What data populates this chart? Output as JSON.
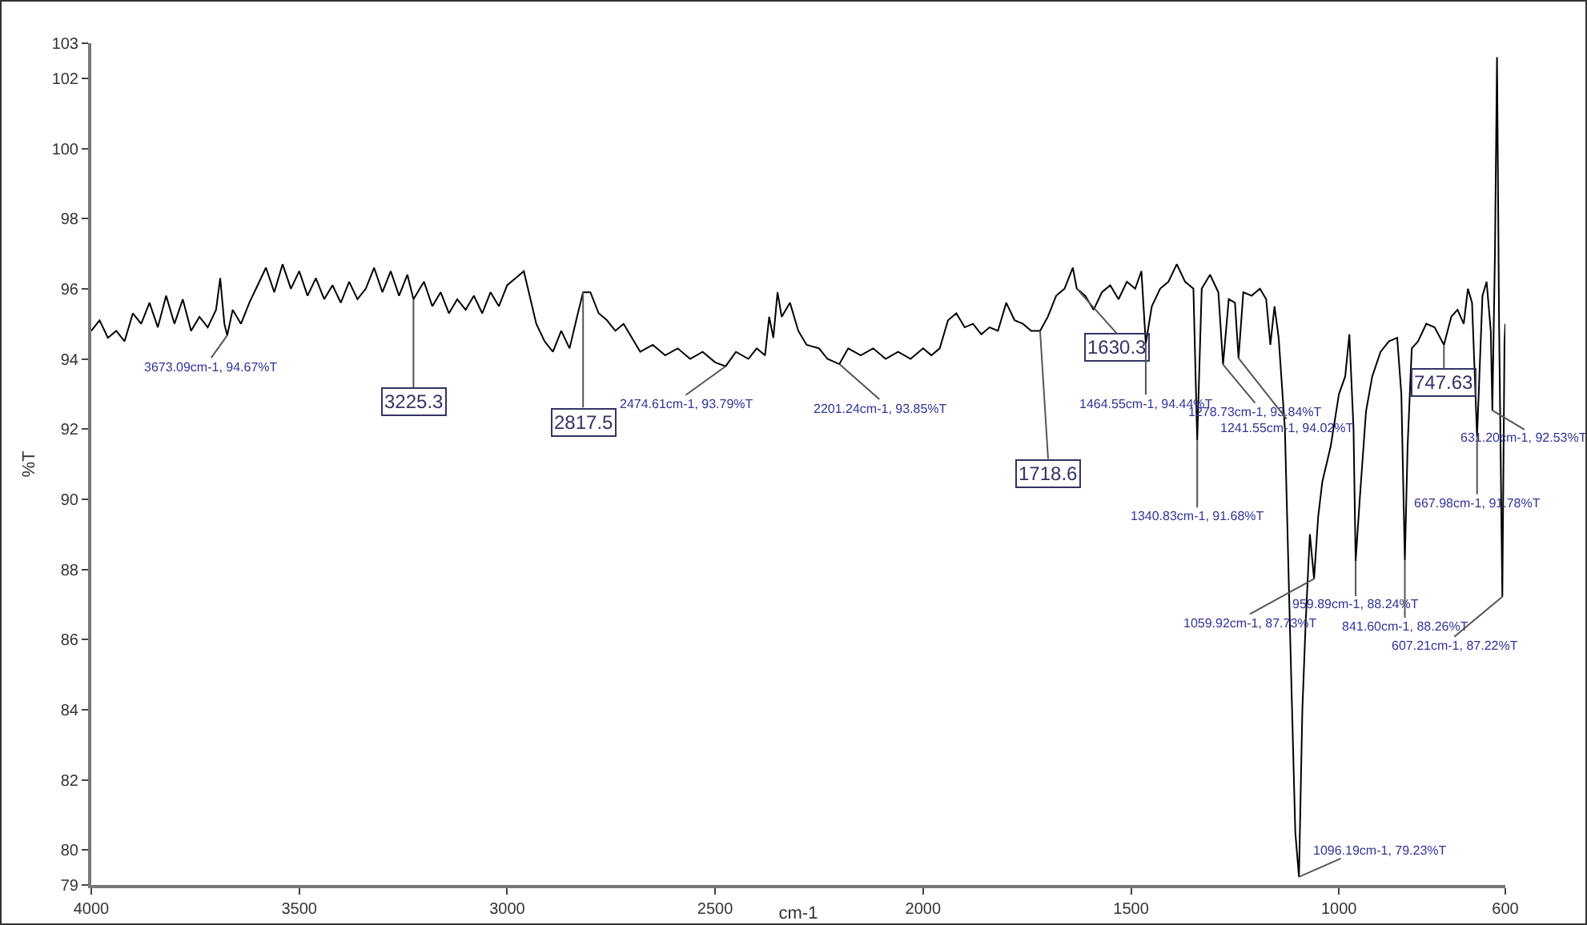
{
  "chart_data": {
    "type": "line",
    "xlabel": "cm-1",
    "ylabel": "%T",
    "color": "#000000",
    "grid": false,
    "marker": "none",
    "line_style": "solid",
    "xlim": [
      4000,
      600
    ],
    "xticks": [
      4000,
      3500,
      3000,
      2500,
      2000,
      1500,
      1000,
      600
    ],
    "ylim": [
      79,
      103
    ],
    "yticks": [
      79,
      80,
      82,
      84,
      86,
      88,
      90,
      92,
      94,
      96,
      98,
      100,
      102,
      103
    ],
    "x": [
      4000,
      3980,
      3960,
      3940,
      3920,
      3900,
      3880,
      3860,
      3840,
      3820,
      3800,
      3780,
      3760,
      3740,
      3720,
      3700,
      3690,
      3680,
      3673.09,
      3660,
      3640,
      3620,
      3600,
      3580,
      3560,
      3540,
      3520,
      3500,
      3480,
      3460,
      3440,
      3420,
      3400,
      3380,
      3360,
      3340,
      3320,
      3300,
      3280,
      3260,
      3240,
      3225.3,
      3200,
      3180,
      3160,
      3140,
      3120,
      3100,
      3080,
      3060,
      3040,
      3020,
      3000,
      2980,
      2960,
      2950,
      2930,
      2910,
      2890,
      2870,
      2850,
      2830,
      2817.5,
      2800,
      2780,
      2760,
      2740,
      2720,
      2700,
      2680,
      2650,
      2620,
      2590,
      2560,
      2530,
      2500,
      2474.61,
      2450,
      2420,
      2400,
      2380,
      2370,
      2360,
      2350,
      2340,
      2320,
      2300,
      2280,
      2250,
      2230,
      2201.24,
      2180,
      2150,
      2120,
      2090,
      2060,
      2030,
      2000,
      1980,
      1960,
      1940,
      1920,
      1900,
      1880,
      1860,
      1840,
      1820,
      1800,
      1780,
      1760,
      1740,
      1718.6,
      1700,
      1680,
      1660,
      1640,
      1630.3,
      1610,
      1590,
      1570,
      1550,
      1530,
      1510,
      1490,
      1475,
      1464.55,
      1450,
      1430,
      1410,
      1390,
      1370,
      1350,
      1340.83,
      1330,
      1310,
      1290,
      1278.73,
      1265,
      1250,
      1241.55,
      1230,
      1210,
      1190,
      1175,
      1165,
      1155,
      1145,
      1130,
      1115,
      1105,
      1096.19,
      1088,
      1080,
      1070,
      1059.92,
      1050,
      1040,
      1020,
      1000,
      985,
      975,
      965,
      959.89,
      950,
      935,
      920,
      900,
      880,
      860,
      850,
      841.6,
      835,
      825,
      810,
      790,
      770,
      747.63,
      730,
      715,
      700,
      690,
      680,
      667.98,
      655,
      645,
      635,
      631.2,
      625,
      620,
      615,
      607.21,
      602,
      600
    ],
    "values": [
      94.8,
      95.1,
      94.6,
      94.8,
      94.5,
      95.3,
      95.0,
      95.6,
      94.9,
      95.8,
      95.0,
      95.7,
      94.8,
      95.2,
      94.9,
      95.4,
      96.3,
      95.0,
      94.67,
      95.4,
      95.0,
      95.6,
      96.1,
      96.6,
      95.9,
      96.7,
      96.0,
      96.5,
      95.8,
      96.3,
      95.7,
      96.1,
      95.6,
      96.2,
      95.7,
      96.0,
      96.6,
      95.9,
      96.5,
      95.8,
      96.4,
      95.7,
      96.2,
      95.5,
      95.9,
      95.3,
      95.7,
      95.4,
      95.8,
      95.3,
      95.9,
      95.5,
      96.1,
      96.3,
      96.5,
      96.0,
      95.0,
      94.5,
      94.2,
      94.8,
      94.3,
      95.3,
      95.9,
      95.9,
      95.3,
      95.1,
      94.8,
      95.0,
      94.6,
      94.2,
      94.4,
      94.1,
      94.3,
      94.0,
      94.2,
      93.9,
      93.79,
      94.2,
      94.0,
      94.3,
      94.1,
      95.2,
      94.6,
      95.9,
      95.2,
      95.6,
      94.8,
      94.4,
      94.3,
      94.0,
      93.85,
      94.3,
      94.1,
      94.3,
      94.0,
      94.2,
      94.0,
      94.3,
      94.1,
      94.3,
      95.1,
      95.3,
      94.9,
      95.0,
      94.7,
      94.9,
      94.8,
      95.6,
      95.1,
      95.0,
      94.8,
      94.8,
      95.2,
      95.8,
      96.0,
      96.6,
      96.0,
      95.8,
      95.4,
      95.9,
      96.1,
      95.7,
      96.2,
      96.0,
      96.5,
      94.44,
      95.5,
      96.0,
      96.2,
      96.7,
      96.2,
      96.0,
      91.68,
      96.0,
      96.4,
      95.9,
      93.84,
      95.7,
      95.6,
      94.02,
      95.9,
      95.8,
      96.0,
      95.7,
      94.4,
      95.5,
      94.6,
      92.0,
      85.0,
      80.5,
      79.23,
      84.0,
      86.5,
      89.0,
      87.73,
      89.5,
      90.5,
      91.5,
      93.0,
      93.5,
      94.7,
      92.0,
      88.24,
      90.0,
      92.5,
      93.5,
      94.2,
      94.5,
      94.6,
      93.0,
      88.26,
      91.5,
      94.3,
      94.5,
      95.0,
      94.9,
      94.4,
      95.2,
      95.4,
      95.0,
      96.0,
      95.6,
      91.78,
      95.8,
      96.2,
      94.8,
      92.53,
      97.0,
      102.6,
      95.0,
      87.22,
      94.5,
      95.0
    ],
    "annotations": [
      {
        "text": "3673.09cm-1, 94.67%T",
        "x": 3673.09,
        "y": 94.67
      },
      {
        "text": "3225.3",
        "x": 3225.3,
        "y": 95.7
      },
      {
        "text": "2817.5",
        "x": 2817.5,
        "y": 95.9
      },
      {
        "text": "2474.61cm-1, 93.79%T",
        "x": 2474.61,
        "y": 93.79
      },
      {
        "text": "2201.24cm-1, 93.85%T",
        "x": 2201.24,
        "y": 93.85
      },
      {
        "text": "1718.6",
        "x": 1718.6,
        "y": 94.8
      },
      {
        "text": "1630.3",
        "x": 1630.3,
        "y": 96.0
      },
      {
        "text": "1464.55cm-1, 94.44%T",
        "x": 1464.55,
        "y": 94.44
      },
      {
        "text": "1278.73cm-1, 93.84%T",
        "x": 1278.73,
        "y": 93.84
      },
      {
        "text": "1241.55cm-1, 94.02%T",
        "x": 1241.55,
        "y": 94.02
      },
      {
        "text": "1340.83cm-1, 91.68%T",
        "x": 1340.83,
        "y": 91.68
      },
      {
        "text": "959.89cm-1, 88.24%T",
        "x": 959.89,
        "y": 88.24
      },
      {
        "text": "1059.92cm-1, 87.73%T",
        "x": 1059.92,
        "y": 87.73
      },
      {
        "text": "841.60cm-1, 88.26%T",
        "x": 841.6,
        "y": 88.26
      },
      {
        "text": "747.63",
        "x": 747.63,
        "y": 94.4
      },
      {
        "text": "631.20cm-1, 92.53%T",
        "x": 631.2,
        "y": 92.53
      },
      {
        "text": "667.98cm-1, 91.78%T",
        "x": 667.98,
        "y": 91.78
      },
      {
        "text": "607.21cm-1, 87.22%T",
        "x": 607.21,
        "y": 87.22
      },
      {
        "text": "1096.19cm-1, 79.23%T",
        "x": 1096.19,
        "y": 79.23
      }
    ]
  }
}
